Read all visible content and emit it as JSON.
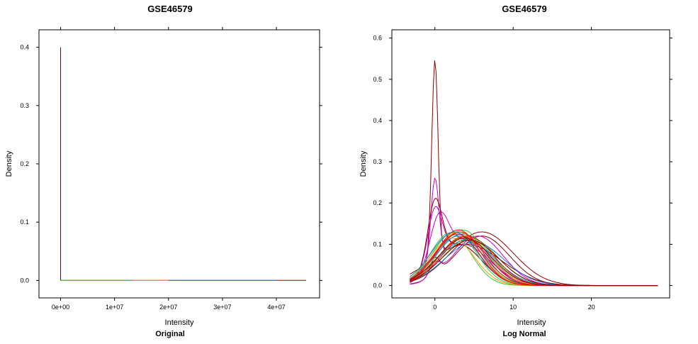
{
  "chart_data": [
    {
      "type": "line",
      "title": "GSE46579",
      "xlabel": "Intensity",
      "ylabel": "Density",
      "sub": "Original",
      "xlim": [
        -4000000,
        48000000
      ],
      "ylim": [
        -0.03,
        0.43
      ],
      "x_ticks": [
        {
          "value": 0,
          "label": "0e+00"
        },
        {
          "value": 10000000,
          "label": "1e+07"
        },
        {
          "value": 20000000,
          "label": "2e+07"
        },
        {
          "value": 30000000,
          "label": "3e+07"
        },
        {
          "value": 40000000,
          "label": "4e+07"
        }
      ],
      "y_ticks": [
        {
          "value": 0.0,
          "label": "0.0"
        },
        {
          "value": 0.1,
          "label": "0.1"
        },
        {
          "value": 0.2,
          "label": "0.2"
        },
        {
          "value": 0.3,
          "label": "0.3"
        },
        {
          "value": 0.4,
          "label": "0.4"
        }
      ],
      "grid": false,
      "series": [
        {
          "color": "#8B0000",
          "x": [
            0,
            0,
            0,
            45500000
          ],
          "y": [
            0.4,
            0.001,
            0.0,
            0.0
          ]
        },
        {
          "color": "#33CC33",
          "x": [
            0,
            13500000
          ],
          "y": [
            0.0,
            0.0
          ]
        },
        {
          "color": "#FF9900",
          "x": [
            13500000,
            20000000
          ],
          "y": [
            0.0,
            0.0
          ]
        },
        {
          "color": "#1F77DD",
          "x": [
            20000000,
            40000000
          ],
          "y": [
            0.0,
            0.0
          ]
        }
      ]
    },
    {
      "type": "line",
      "title": "GSE46579",
      "xlabel": "Intensity",
      "ylabel": "Density",
      "sub": "Log Normal",
      "xlim": [
        -5.5,
        30.0
      ],
      "ylim": [
        -0.03,
        0.62
      ],
      "x_ticks": [
        {
          "value": 0,
          "label": "0"
        },
        {
          "value": 10,
          "label": "10"
        },
        {
          "value": 20,
          "label": "20"
        }
      ],
      "y_ticks": [
        {
          "value": 0.0,
          "label": "0.0"
        },
        {
          "value": 0.1,
          "label": "0.1"
        },
        {
          "value": 0.2,
          "label": "0.2"
        },
        {
          "value": 0.3,
          "label": "0.3"
        },
        {
          "value": 0.4,
          "label": "0.4"
        },
        {
          "value": 0.5,
          "label": "0.5"
        },
        {
          "value": 0.6,
          "label": "0.6"
        }
      ],
      "grid": false,
      "x_range": [
        -3.2,
        28.5
      ],
      "series": [
        {
          "color": "#8B0000",
          "components": [
            [
              0.48,
              0.0,
              0.4
            ],
            [
              0.1,
              4.0,
              4.5
            ]
          ]
        },
        {
          "color": "#CC00CC",
          "components": [
            [
              0.2,
              0.0,
              0.5
            ],
            [
              0.1,
              3.5,
              3.5
            ]
          ]
        },
        {
          "color": "#CC00CC",
          "components": [
            [
              0.13,
              0.0,
              0.9
            ],
            [
              0.1,
              3.0,
              3.0
            ]
          ]
        },
        {
          "color": "#8B0000",
          "components": [
            [
              0.15,
              0.0,
              0.9
            ],
            [
              0.1,
              3.0,
              3.0
            ]
          ]
        },
        {
          "color": "#CC00CC",
          "components": [
            [
              0.12,
              0.5,
              1.2
            ],
            [
              0.11,
              4.0,
              3.0
            ]
          ]
        },
        {
          "color": "#8B0000",
          "components": [
            [
              0.04,
              0.0,
              0.6
            ],
            [
              0.12,
              6.0,
              3.5
            ]
          ]
        },
        {
          "color": "#CC00CC",
          "components": [
            [
              0.03,
              0.0,
              0.7
            ],
            [
              0.12,
              5.5,
              3.2
            ]
          ]
        },
        {
          "color": "#8B0000",
          "components": [
            [
              0.13,
              6.0,
              4.0
            ]
          ]
        },
        {
          "color": "#33CC33",
          "components": [
            [
              0.125,
              3.0,
              3.0
            ]
          ]
        },
        {
          "color": "#33CC33",
          "components": [
            [
              0.13,
              2.5,
              2.8
            ]
          ]
        },
        {
          "color": "#33CC33",
          "components": [
            [
              0.135,
              3.5,
              3.0
            ]
          ]
        },
        {
          "color": "#33CC33",
          "components": [
            [
              0.12,
              4.0,
              3.3
            ]
          ]
        },
        {
          "color": "#33CC33",
          "components": [
            [
              0.128,
              2.0,
              2.6
            ]
          ]
        },
        {
          "color": "#33CC33",
          "components": [
            [
              0.115,
              4.5,
              3.5
            ]
          ]
        },
        {
          "color": "#1F77DD",
          "components": [
            [
              0.12,
              3.0,
              3.2
            ]
          ]
        },
        {
          "color": "#1F77DD",
          "components": [
            [
              0.13,
              2.5,
              3.0
            ]
          ]
        },
        {
          "color": "#1F77DD",
          "components": [
            [
              0.11,
              4.0,
              3.6
            ]
          ]
        },
        {
          "color": "#1F77DD",
          "components": [
            [
              0.125,
              3.5,
              3.3
            ]
          ]
        },
        {
          "color": "#1F77DD",
          "components": [
            [
              0.105,
              5.0,
              3.8
            ]
          ]
        },
        {
          "color": "#FF9900",
          "components": [
            [
              0.13,
              3.0,
              2.9
            ]
          ]
        },
        {
          "color": "#FF9900",
          "components": [
            [
              0.12,
              3.8,
              3.2
            ]
          ]
        },
        {
          "color": "#FF9900",
          "components": [
            [
              0.115,
              2.2,
              2.8
            ]
          ]
        },
        {
          "color": "#EE1111",
          "components": [
            [
              0.13,
              3.2,
              3.0
            ]
          ]
        },
        {
          "color": "#EE1111",
          "components": [
            [
              0.125,
              2.8,
              2.9
            ]
          ]
        },
        {
          "color": "#EE1111",
          "components": [
            [
              0.12,
              4.2,
              3.3
            ]
          ]
        },
        {
          "color": "#EE1111",
          "components": [
            [
              0.135,
              3.0,
              2.8
            ]
          ]
        },
        {
          "color": "#EE1111",
          "components": [
            [
              0.118,
              3.6,
              3.1
            ]
          ]
        },
        {
          "color": "#8B0000",
          "components": [
            [
              0.11,
              4.5,
              3.6
            ]
          ]
        },
        {
          "color": "#8B0000",
          "components": [
            [
              0.115,
              3.8,
              3.4
            ]
          ]
        }
      ]
    }
  ]
}
